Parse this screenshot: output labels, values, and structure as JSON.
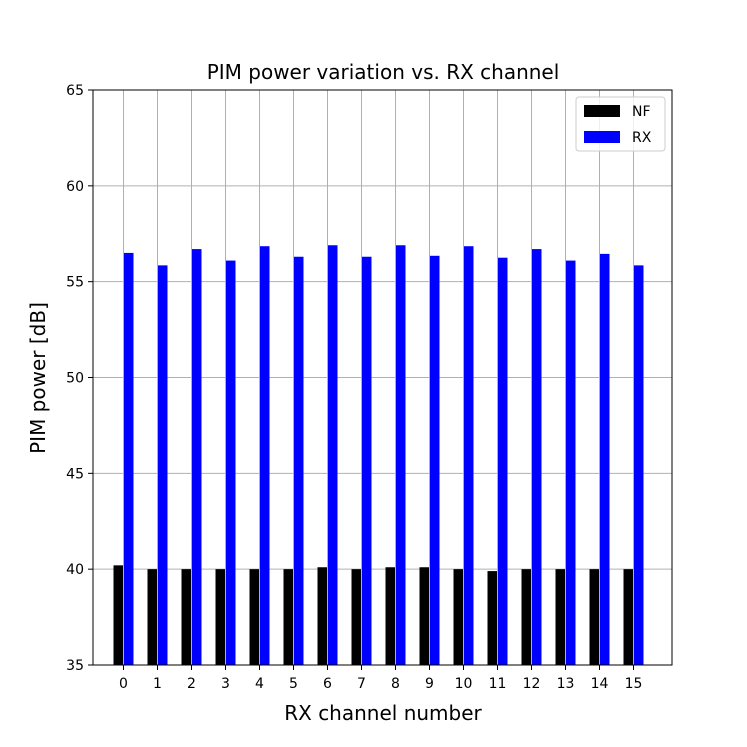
{
  "chart_data": {
    "type": "bar",
    "title": "PIM power variation vs. RX channel",
    "xlabel": "RX channel number",
    "ylabel": "PIM power [dB]",
    "categories": [
      "0",
      "1",
      "2",
      "3",
      "4",
      "5",
      "6",
      "7",
      "8",
      "9",
      "10",
      "11",
      "12",
      "13",
      "14",
      "15"
    ],
    "series": [
      {
        "name": "NF",
        "color": "#000000",
        "values": [
          40.2,
          40.0,
          40.0,
          40.0,
          40.0,
          40.0,
          40.1,
          40.0,
          40.1,
          40.1,
          40.0,
          39.9,
          40.0,
          40.0,
          40.0,
          40.0
        ]
      },
      {
        "name": "RX",
        "color": "#0000ff",
        "values": [
          56.5,
          55.85,
          56.7,
          56.1,
          56.85,
          56.3,
          56.9,
          56.3,
          56.9,
          56.35,
          56.85,
          56.25,
          56.7,
          56.1,
          56.45,
          55.85
        ]
      }
    ],
    "ylim": [
      35,
      65
    ],
    "yticks": [
      35,
      40,
      45,
      50,
      55,
      60,
      65
    ],
    "grid": true,
    "legend_position": "top-right"
  }
}
